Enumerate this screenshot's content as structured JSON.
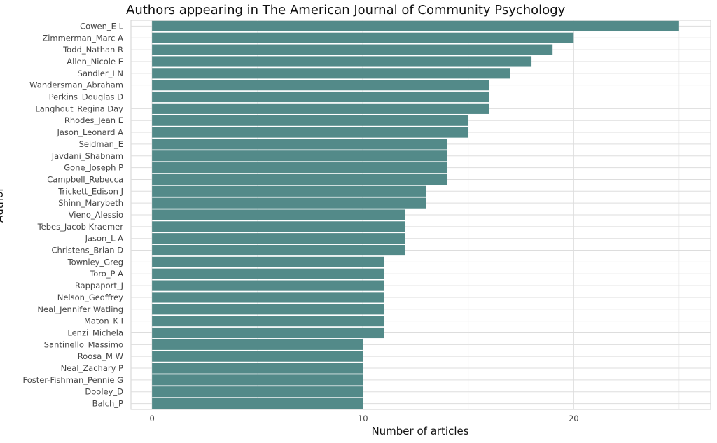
{
  "chart_data": {
    "type": "bar",
    "orientation": "horizontal",
    "title": "Authors appearing in The American Journal of Community Psychology",
    "xlabel": "Number of articles",
    "ylabel": "Author",
    "xlim": [
      -1,
      26.5
    ],
    "xticks": [
      0,
      10,
      20
    ],
    "grid": true,
    "bar_color": "#538a89",
    "categories": [
      "Cowen_E L",
      "Zimmerman_Marc A",
      "Todd_Nathan R",
      "Allen_Nicole E",
      "Sandler_I N",
      "Wandersman_Abraham",
      "Perkins_Douglas D",
      "Langhout_Regina Day",
      "Rhodes_Jean E",
      "Jason_Leonard A",
      "Seidman_E",
      "Javdani_Shabnam",
      "Gone_Joseph P",
      "Campbell_Rebecca",
      "Trickett_Edison J",
      "Shinn_Marybeth",
      "Vieno_Alessio",
      "Tebes_Jacob Kraemer",
      "Jason_L A",
      "Christens_Brian D",
      "Townley_Greg",
      "Toro_P A",
      "Rappaport_J",
      "Nelson_Geoffrey",
      "Neal_Jennifer Watling",
      "Maton_K I",
      "Lenzi_Michela",
      "Santinello_Massimo",
      "Roosa_M W",
      "Neal_Zachary P",
      "Foster-Fishman_Pennie G",
      "Dooley_D",
      "Balch_P"
    ],
    "values": [
      25,
      20,
      19,
      18,
      17,
      16,
      16,
      16,
      15,
      15,
      14,
      14,
      14,
      14,
      13,
      13,
      12,
      12,
      12,
      12,
      11,
      11,
      11,
      11,
      11,
      11,
      11,
      10,
      10,
      10,
      10,
      10,
      10
    ]
  }
}
